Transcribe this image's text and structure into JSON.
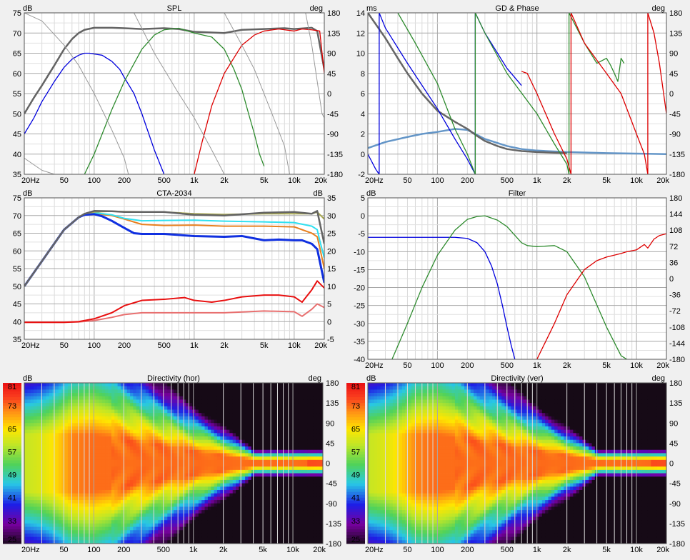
{
  "x_ticks": [
    "20Hz",
    "50",
    "100",
    "200",
    "500",
    "1k",
    "2k",
    "5k",
    "10k",
    "20k"
  ],
  "chart_data": [
    {
      "type": "line",
      "title": "SPL",
      "left_unit": "dB",
      "right_unit": "deg",
      "ylim": [
        35,
        75
      ],
      "y2lim": [
        -180,
        180
      ],
      "left_ticks": [
        "35",
        "40",
        "45",
        "50",
        "55",
        "60",
        "65",
        "70",
        "75"
      ],
      "right_ticks": [
        "-180",
        "-135",
        "-90",
        "-45",
        "0",
        "45",
        "90",
        "135",
        "180"
      ],
      "series": [
        {
          "color": "#646464",
          "width": 2.5,
          "x": [
            20,
            25,
            30,
            40,
            50,
            60,
            70,
            80,
            100,
            150,
            200,
            300,
            500,
            700,
            1000,
            2000,
            3000,
            5000,
            8000,
            10000,
            15000,
            17000,
            20000
          ],
          "values": [
            50,
            54,
            57,
            62,
            66,
            68.5,
            70,
            70.8,
            71.3,
            71.3,
            71.2,
            71,
            71.2,
            71,
            70.3,
            70,
            70.8,
            71,
            71.2,
            71,
            71.3,
            70.5,
            61
          ]
        },
        {
          "color": "#0000dd",
          "width": 1.3,
          "x": [
            20,
            25,
            30,
            40,
            50,
            60,
            70,
            80,
            90,
            100,
            120,
            150,
            180,
            200,
            250,
            300,
            400,
            500
          ],
          "values": [
            45,
            49,
            53,
            58,
            61.5,
            63.5,
            64.5,
            65,
            65,
            64.8,
            64.5,
            63,
            61,
            59,
            55,
            50,
            41,
            35
          ]
        },
        {
          "color": "#2e8b2e",
          "width": 1.3,
          "x": [
            80,
            100,
            150,
            200,
            300,
            400,
            500,
            700,
            1000,
            1500,
            2000,
            2500,
            3000,
            3500,
            4000,
            4500,
            5000
          ],
          "values": [
            35,
            40,
            51,
            58,
            66,
            69.5,
            70.8,
            71.2,
            70,
            69,
            66,
            61,
            56,
            50,
            45,
            40,
            37
          ]
        },
        {
          "color": "#dd0000",
          "width": 1.3,
          "x": [
            1000,
            1200,
            1500,
            2000,
            3000,
            4000,
            5000,
            7000,
            10000,
            12000,
            15000,
            18000,
            20000
          ],
          "values": [
            35,
            43,
            52,
            60,
            67,
            69.5,
            70.5,
            71,
            70.5,
            71,
            70.8,
            70.5,
            60
          ]
        },
        {
          "color": "#9a9a9a",
          "width": 1,
          "x": [
            20,
            30,
            50,
            70,
            100,
            150,
            200,
            220
          ],
          "values": [
            75,
            73,
            67,
            62,
            55,
            46,
            39,
            35
          ]
        },
        {
          "color": "#9a9a9a",
          "width": 1,
          "x": [
            20,
            30,
            40
          ],
          "values": [
            39,
            36,
            35
          ]
        },
        {
          "color": "#9a9a9a",
          "width": 1,
          "x": [
            250,
            400,
            700,
            1000,
            1500,
            2000
          ],
          "values": [
            75,
            65,
            55,
            49,
            41,
            35
          ]
        },
        {
          "color": "#9a9a9a",
          "width": 1,
          "x": [
            2000,
            3000,
            4000,
            6000,
            8000,
            9000
          ],
          "values": [
            75,
            67,
            61,
            50,
            42,
            35
          ]
        },
        {
          "color": "#9a9a9a",
          "width": 1,
          "x": [
            13000,
            15000,
            17000,
            19000,
            20000
          ],
          "values": [
            75,
            67,
            58,
            50,
            49
          ]
        }
      ]
    },
    {
      "type": "line",
      "title": "GD & Phase",
      "left_unit": "ms",
      "right_unit": "deg",
      "ylim": [
        -2,
        14
      ],
      "y2lim": [
        -180,
        180
      ],
      "left_ticks": [
        "-2",
        "0",
        "2",
        "4",
        "6",
        "8",
        "10",
        "12",
        "14"
      ],
      "right_ticks": [
        "-180",
        "-135",
        "-90",
        "-45",
        "0",
        "45",
        "90",
        "135",
        "180"
      ],
      "series": [
        {
          "color": "#6496c8",
          "width": 2.5,
          "x": [
            20,
            30,
            50,
            70,
            100,
            150,
            200,
            300,
            500,
            700,
            1000,
            2000,
            5000,
            10000,
            20000
          ],
          "values": [
            0.6,
            1.2,
            1.7,
            2,
            2.2,
            2.5,
            2.4,
            1.5,
            0.8,
            0.5,
            0.35,
            0.2,
            0.1,
            0.05,
            0
          ]
        },
        {
          "color": "#666666",
          "width": 2.5,
          "x": [
            20,
            30,
            40,
            50,
            70,
            100,
            150,
            200,
            250,
            300,
            400,
            500,
            700,
            1000,
            2000
          ],
          "values": [
            14,
            11.5,
            9.5,
            8,
            6,
            4.3,
            3.2,
            2.5,
            1.8,
            1.3,
            0.8,
            0.5,
            0.3,
            0.2,
            0.1
          ]
        },
        {
          "color": "#0000dd",
          "width": 1.3,
          "x": [
            20,
            24,
            26,
            26.01,
            30,
            50,
            100,
            150,
            200,
            240,
            240.01,
            300,
            500,
            700
          ],
          "values": [
            0,
            -1.5,
            -2,
            14,
            12.5,
            9,
            4.5,
            1.5,
            -0.5,
            -2,
            14,
            12,
            8.5,
            6.8
          ]
        },
        {
          "color": "#2e8b2e",
          "width": 1.3,
          "x": [
            40,
            60,
            100,
            150,
            200,
            240,
            240.01,
            300,
            500,
            1000,
            1500,
            2000,
            2100,
            2100.01,
            3000,
            4000,
            5000,
            5500,
            6000,
            6500,
            7000,
            7500
          ],
          "values": [
            14,
            11,
            7,
            2.5,
            0,
            -2,
            14,
            12,
            8,
            4,
            1,
            -1,
            -2,
            14,
            11,
            9,
            9.5,
            8.8,
            8,
            7.2,
            9.5,
            9
          ]
        },
        {
          "color": "#dd0000",
          "width": 1.3,
          "x": [
            700,
            800,
            1000,
            1500,
            2000,
            2200,
            2200.01,
            3000,
            5000,
            7000,
            10000,
            12000,
            13000,
            13000.01,
            15000,
            17000,
            20000
          ],
          "values": [
            8.2,
            8,
            6,
            2,
            -0.5,
            -2,
            14,
            11,
            8,
            6,
            2,
            0,
            -2,
            14,
            12,
            9,
            4
          ]
        }
      ]
    },
    {
      "type": "line",
      "title": "CTA-2034",
      "left_unit": "dB",
      "right_unit": "dB",
      "ylim": [
        35,
        75
      ],
      "y2lim": [
        -5,
        35
      ],
      "left_ticks": [
        "35",
        "40",
        "45",
        "50",
        "55",
        "60",
        "65",
        "70",
        "75"
      ],
      "right_ticks": [
        "-5",
        "0",
        "5",
        "10",
        "15",
        "20",
        "25",
        "30",
        "35"
      ],
      "series": [
        {
          "color": "#e87070",
          "width": 2,
          "x": [
            20,
            50,
            70,
            100,
            150,
            200,
            300,
            500,
            1000,
            2000,
            5000,
            10000,
            12000,
            15000,
            17000,
            20000
          ],
          "values": [
            39.8,
            39.8,
            39.9,
            40.3,
            41.2,
            42,
            42.5,
            42.5,
            42.5,
            42.5,
            43,
            42.8,
            41.5,
            43.5,
            45,
            44
          ]
        },
        {
          "color": "#e81010",
          "width": 2,
          "x": [
            20,
            50,
            70,
            100,
            150,
            200,
            300,
            500,
            800,
            1000,
            1500,
            2000,
            3000,
            5000,
            7000,
            10000,
            12000,
            15000,
            17000,
            20000
          ],
          "values": [
            39.8,
            39.8,
            40,
            40.8,
            42.5,
            44.5,
            46,
            46.3,
            46.8,
            46,
            45.5,
            46,
            47,
            47.5,
            47.5,
            47,
            45.5,
            49,
            51.5,
            49.5
          ]
        },
        {
          "color": "#e88020",
          "width": 2,
          "x": [
            20,
            50,
            70,
            80,
            100,
            150,
            200,
            300,
            500,
            1000,
            2000,
            5000,
            10000,
            15000,
            17000,
            18000,
            20000
          ],
          "values": [
            50,
            66,
            69.5,
            70.3,
            70.6,
            70,
            69,
            67.5,
            67.2,
            67.3,
            67,
            67,
            66.8,
            65,
            64,
            61,
            55
          ]
        },
        {
          "color": "#30e0f0",
          "width": 2,
          "x": [
            20,
            50,
            70,
            80,
            100,
            150,
            200,
            300,
            500,
            1000,
            2000,
            5000,
            10000,
            15000,
            17000,
            18000,
            20000
          ],
          "values": [
            50,
            66,
            69.5,
            70.4,
            70.8,
            70.2,
            69.2,
            68.5,
            68.6,
            68.7,
            68.4,
            68.2,
            68,
            67,
            66,
            63,
            58
          ]
        },
        {
          "color": "#1030e0",
          "width": 3,
          "x": [
            20,
            50,
            70,
            80,
            100,
            120,
            150,
            200,
            250,
            300,
            500,
            1000,
            2000,
            3000,
            5000,
            7000,
            10000,
            12000,
            15000,
            17000,
            20000
          ],
          "values": [
            50,
            66,
            69.5,
            70.2,
            70.4,
            69.8,
            68.5,
            66.5,
            65,
            64.8,
            64.8,
            64.2,
            64,
            64.2,
            63,
            63.2,
            63,
            63,
            62,
            60.5,
            51
          ]
        },
        {
          "color": "#a8a850",
          "width": 2,
          "x": [
            20,
            50,
            70,
            80,
            100,
            150,
            200,
            500,
            1000,
            2000,
            5000,
            10000,
            15000,
            17000,
            20000
          ],
          "values": [
            50,
            66,
            69.5,
            70.5,
            71,
            71.2,
            71.1,
            71,
            70.5,
            70.3,
            70.5,
            70.5,
            70.5,
            71,
            69
          ]
        },
        {
          "color": "#646464",
          "width": 2.5,
          "x": [
            20,
            50,
            70,
            80,
            100,
            150,
            200,
            500,
            1000,
            2000,
            5000,
            10000,
            15000,
            17000,
            20000
          ],
          "values": [
            50,
            66,
            69.5,
            70.5,
            71.3,
            71.2,
            71,
            71,
            70.2,
            70,
            70.8,
            71,
            70.5,
            71.3,
            62
          ]
        }
      ]
    },
    {
      "type": "line",
      "title": "Filter",
      "left_unit": "dB",
      "right_unit": "",
      "ylim": [
        -40,
        5
      ],
      "y2lim": [
        -180,
        180
      ],
      "left_ticks": [
        "-40",
        "-35",
        "-30",
        "-25",
        "-20",
        "-15",
        "-10",
        "-5",
        "0",
        "5"
      ],
      "right_ticks": [
        "-180",
        "-144",
        "-108",
        "-72",
        "-36",
        "0",
        "36",
        "72",
        "108",
        "144",
        "180"
      ],
      "series": [
        {
          "color": "#0000dd",
          "width": 1.3,
          "x": [
            20,
            100,
            150,
            200,
            250,
            300,
            350,
            400,
            450,
            500,
            550,
            600
          ],
          "values": [
            -6,
            -6,
            -6,
            -6.3,
            -7.5,
            -10,
            -14,
            -19,
            -25,
            -31,
            -36,
            -40
          ]
        },
        {
          "color": "#2e8b2e",
          "width": 1.3,
          "x": [
            35,
            50,
            70,
            100,
            150,
            200,
            250,
            300,
            400,
            500,
            700,
            800,
            1000,
            1500,
            2000,
            3000,
            5000,
            7000,
            8000
          ],
          "values": [
            -40,
            -30,
            -20,
            -11,
            -4,
            -1,
            -0.2,
            0,
            -1.2,
            -3,
            -7.5,
            -8.3,
            -8.6,
            -8.3,
            -10,
            -17,
            -31,
            -39,
            -40
          ]
        },
        {
          "color": "#dd0000",
          "width": 1.3,
          "x": [
            1000,
            1500,
            2000,
            3000,
            4000,
            5000,
            7000,
            8000,
            10000,
            12000,
            13000,
            15000,
            17000,
            20000
          ],
          "values": [
            -40,
            -30,
            -22,
            -15,
            -12.5,
            -11.5,
            -10.5,
            -10,
            -9.5,
            -8,
            -9,
            -6.5,
            -5.5,
            -5
          ]
        }
      ]
    },
    {
      "type": "heatmap",
      "title": "Directivity (hor)",
      "left_unit": "dB",
      "right_unit": "deg",
      "colorbar_ticks": [
        "25",
        "33",
        "41",
        "49",
        "57",
        "65",
        "73",
        "81"
      ],
      "right_ticks": [
        "-180",
        "-135",
        "-90",
        "-45",
        "0",
        "45",
        "90",
        "135",
        "180"
      ]
    },
    {
      "type": "heatmap",
      "title": "Directivity (ver)",
      "left_unit": "dB",
      "right_unit": "deg",
      "colorbar_ticks": [
        "25",
        "33",
        "41",
        "49",
        "57",
        "65",
        "73",
        "81"
      ],
      "right_ticks": [
        "-180",
        "-135",
        "-90",
        "-45",
        "0",
        "45",
        "90",
        "135",
        "180"
      ]
    }
  ]
}
